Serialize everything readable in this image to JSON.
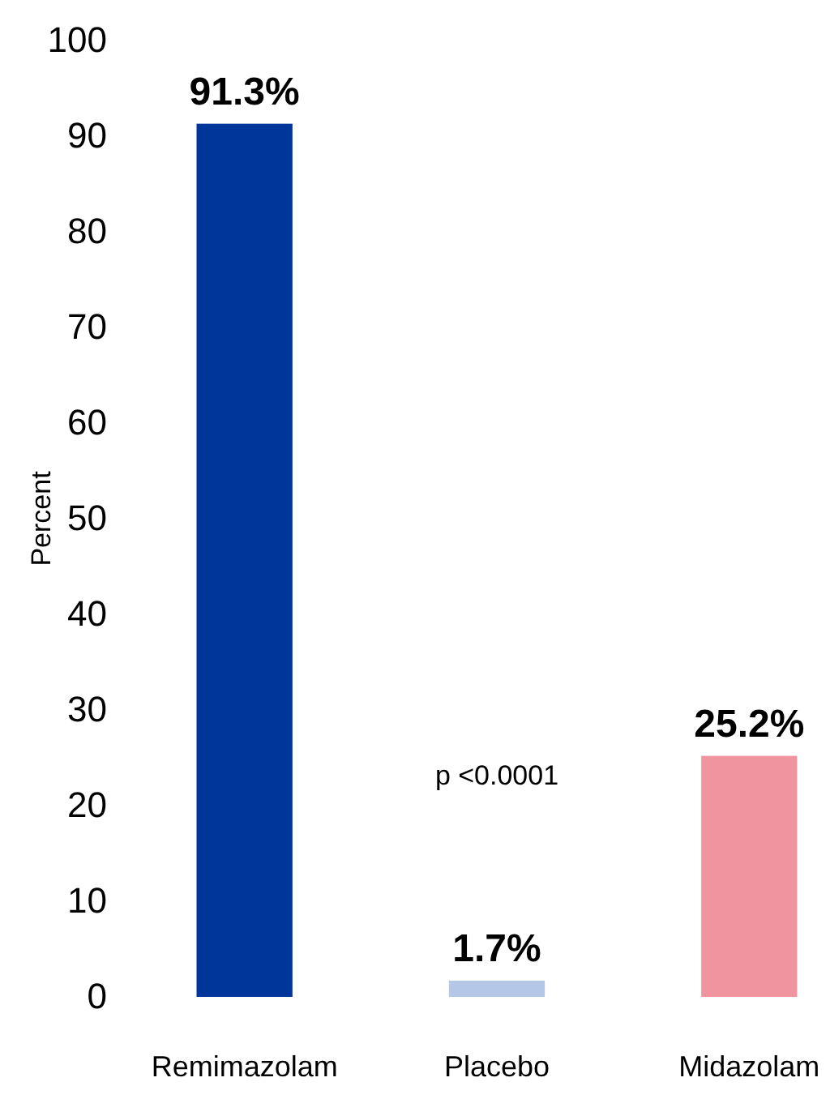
{
  "chart_data": {
    "type": "bar",
    "ylabel": "Percent",
    "categories": [
      "Remimazolam",
      "Placebo",
      "Midazolam"
    ],
    "values": [
      91.3,
      1.7,
      25.2
    ],
    "colors": [
      "#00369a",
      "#b4c7e7",
      "#f0959f"
    ],
    "value_labels": [
      "91.3%",
      "1.7%",
      "25.2%"
    ],
    "ylim": [
      0,
      100
    ],
    "yticks": [
      0,
      10,
      20,
      30,
      40,
      50,
      60,
      70,
      80,
      90,
      100
    ],
    "grid": false,
    "annotations": [
      "p <0.0001"
    ]
  }
}
